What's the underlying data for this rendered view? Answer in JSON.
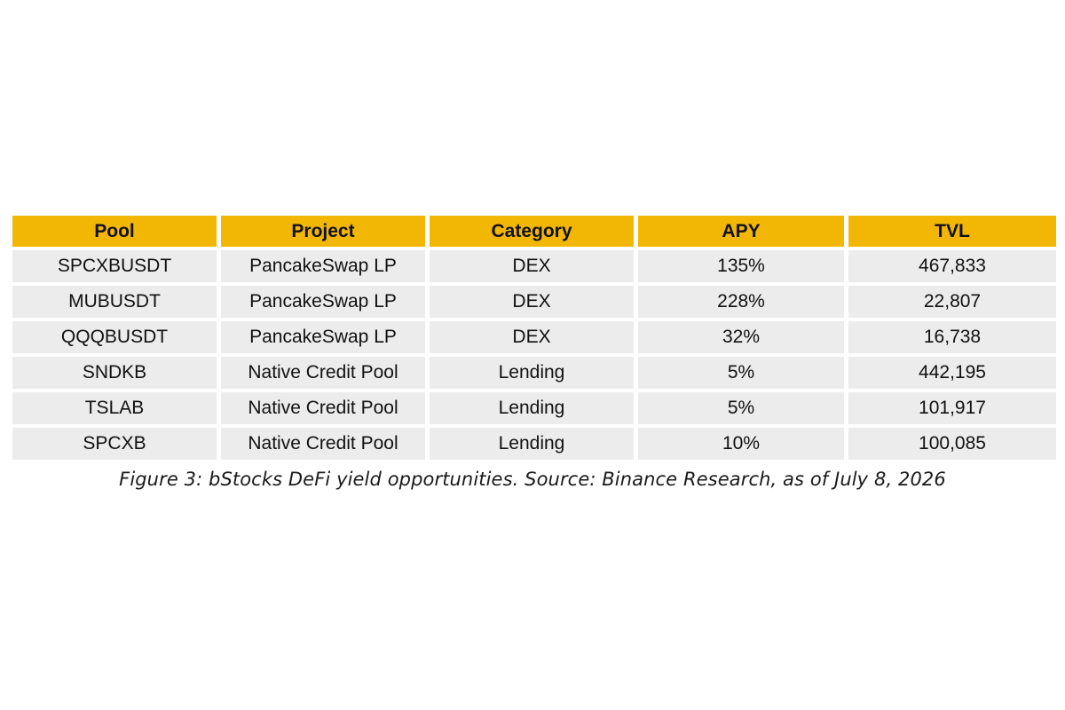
{
  "chart_data": {
    "type": "table",
    "columns": [
      "Pool",
      "Project",
      "Category",
      "APY",
      "TVL"
    ],
    "rows": [
      [
        "SPCXBUSDT",
        "PancakeSwap LP",
        "DEX",
        "135%",
        "467,833"
      ],
      [
        "MUBUSDT",
        "PancakeSwap LP",
        "DEX",
        "228%",
        "22,807"
      ],
      [
        "QQQBUSDT",
        "PancakeSwap LP",
        "DEX",
        "32%",
        "16,738"
      ],
      [
        "SNDKB",
        "Native Credit Pool",
        "Lending",
        "5%",
        "442,195"
      ],
      [
        "TSLAB",
        "Native Credit Pool",
        "Lending",
        "5%",
        "101,917"
      ],
      [
        "SPCXB",
        "Native Credit Pool",
        "Lending",
        "10%",
        "100,085"
      ]
    ],
    "caption": "Figure 3: bStocks DeFi yield opportunities. Source: Binance Research, as of July 8, 2026"
  },
  "colors": {
    "header_bg": "#f2b705",
    "cell_bg": "#ececec",
    "text": "#111111"
  }
}
